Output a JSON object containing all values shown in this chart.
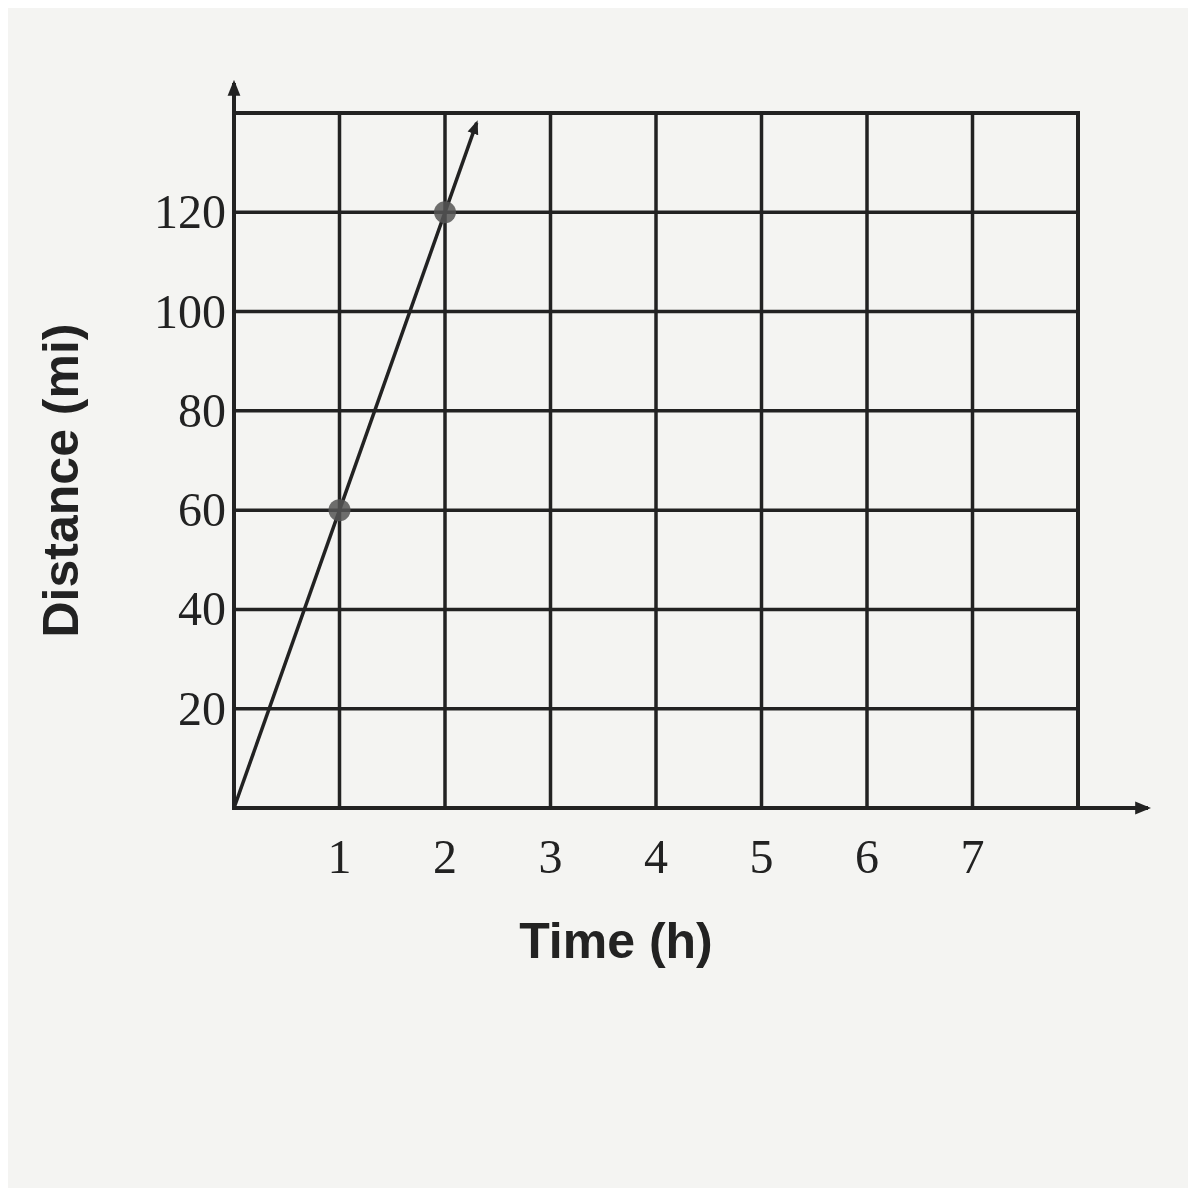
{
  "chart_data": {
    "type": "line",
    "xlabel": "Time (h)",
    "ylabel": "Distance (mi)",
    "xlim": [
      0,
      8
    ],
    "ylim": [
      0,
      140
    ],
    "xticks": [
      1,
      2,
      3,
      4,
      5,
      6,
      7
    ],
    "yticks": [
      20,
      40,
      60,
      80,
      100,
      120
    ],
    "grid": true,
    "series": [
      {
        "color": "#222222",
        "x": [
          0,
          2.3
        ],
        "values": [
          0,
          138
        ],
        "marker": "none",
        "line_style": "solid"
      },
      {
        "type": "scatter",
        "color": "#555555",
        "x": [
          1,
          2
        ],
        "values": [
          60,
          120
        ],
        "marker": "circle"
      }
    ]
  }
}
